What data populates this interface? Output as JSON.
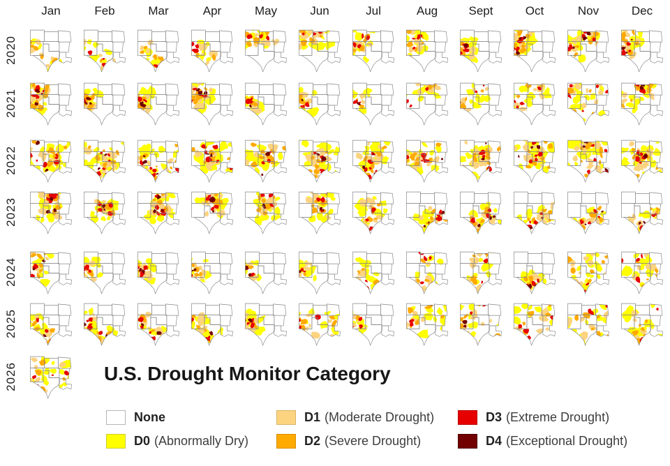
{
  "figure": {
    "title": "U.S. Drought Monitor Category",
    "background": "#ffffff",
    "state_border_color": "#858585",
    "text_color": "#1c1c1c"
  },
  "legend": {
    "columns": [
      [
        {
          "code": "None",
          "desc": "",
          "color": "#ffffff",
          "border": "#b5b5b5"
        },
        {
          "code": "D0",
          "desc": "(Abnormally Dry)",
          "color": "#ffff00",
          "border": "#cccc33"
        }
      ],
      [
        {
          "code": "D1",
          "desc": "(Moderate Drought)",
          "color": "#fcd37f",
          "border": "#d9b468"
        },
        {
          "code": "D2",
          "desc": "(Severe Drought)",
          "color": "#ffaa00",
          "border": "#d98f00"
        }
      ],
      [
        {
          "code": "D3",
          "desc": "(Extreme Drought)",
          "color": "#e60000",
          "border": "#b80000"
        },
        {
          "code": "D4",
          "desc": "(Exceptional Drought)",
          "color": "#730000",
          "border": "#4d0000"
        }
      ]
    ]
  },
  "chart_data": {
    "type": "heatmap",
    "title": "U.S. Drought Monitor Category",
    "categories": [
      "Jan",
      "Feb",
      "Mar",
      "Apr",
      "May",
      "Jun",
      "Jul",
      "Aug",
      "Sept",
      "Oct",
      "Nov",
      "Dec"
    ],
    "years": [
      "2020",
      "2021",
      "2022",
      "2023",
      "2024",
      "2025",
      "2026"
    ],
    "legend_entries": [
      "None",
      "D0 (Abnormally Dry)",
      "D1 (Moderate Drought)",
      "D2 (Severe Drought)",
      "D3 (Extreme Drought)",
      "D4 (Exceptional Drought)"
    ],
    "palette": [
      "#ffff00",
      "#fcd37f",
      "#ffaa00",
      "#e60000",
      "#730000"
    ],
    "region_states": [
      "Colorado",
      "Kansas",
      "Missouri (partial)",
      "New Mexico",
      "Oklahoma",
      "Arkansas",
      "Louisiana",
      "Texas"
    ],
    "series": [
      {
        "name": "2020",
        "cells": [
          {
            "m": "Jan",
            "coverage": 0.4,
            "max_level": 2,
            "focus": "w,s"
          },
          {
            "m": "Feb",
            "coverage": 0.38,
            "max_level": 3,
            "focus": "w,s"
          },
          {
            "m": "Mar",
            "coverage": 0.38,
            "max_level": 3,
            "focus": "w,s"
          },
          {
            "m": "Apr",
            "coverage": 0.45,
            "max_level": 3,
            "focus": "w,s"
          },
          {
            "m": "May",
            "coverage": 0.5,
            "max_level": 3,
            "focus": "nw,n"
          },
          {
            "m": "Jun",
            "coverage": 0.55,
            "max_level": 3,
            "focus": "nw,n"
          },
          {
            "m": "Jul",
            "coverage": 0.55,
            "max_level": 3,
            "focus": "nw,w"
          },
          {
            "m": "Aug",
            "coverage": 0.62,
            "max_level": 3,
            "focus": "w,nw"
          },
          {
            "m": "Sept",
            "coverage": 0.6,
            "max_level": 4,
            "focus": "w"
          },
          {
            "m": "Oct",
            "coverage": 0.68,
            "max_level": 4,
            "focus": "w,nw"
          },
          {
            "m": "Nov",
            "coverage": 0.72,
            "max_level": 4,
            "focus": "w,n"
          },
          {
            "m": "Dec",
            "coverage": 0.72,
            "max_level": 4,
            "focus": "w,nw"
          }
        ]
      },
      {
        "name": "2021",
        "cells": [
          {
            "m": "Jan",
            "coverage": 0.8,
            "max_level": 4,
            "focus": "w,nw"
          },
          {
            "m": "Feb",
            "coverage": 0.78,
            "max_level": 4,
            "focus": "w"
          },
          {
            "m": "Mar",
            "coverage": 0.75,
            "max_level": 4,
            "focus": "w"
          },
          {
            "m": "Apr",
            "coverage": 0.7,
            "max_level": 4,
            "focus": "w,nw"
          },
          {
            "m": "May",
            "coverage": 0.55,
            "max_level": 4,
            "focus": "w"
          },
          {
            "m": "Jun",
            "coverage": 0.42,
            "max_level": 4,
            "focus": "w"
          },
          {
            "m": "Jul",
            "coverage": 0.28,
            "max_level": 4,
            "focus": "w"
          },
          {
            "m": "Aug",
            "coverage": 0.35,
            "max_level": 3,
            "focus": "w,n"
          },
          {
            "m": "Sept",
            "coverage": 0.45,
            "max_level": 3,
            "focus": "w,n"
          },
          {
            "m": "Oct",
            "coverage": 0.5,
            "max_level": 3,
            "focus": "w,n"
          },
          {
            "m": "Nov",
            "coverage": 0.6,
            "max_level": 3,
            "focus": "all"
          },
          {
            "m": "Dec",
            "coverage": 0.68,
            "max_level": 4,
            "focus": "w,n"
          }
        ]
      },
      {
        "name": "2022",
        "cells": [
          {
            "m": "Jan",
            "coverage": 0.85,
            "max_level": 4,
            "focus": "all,w,c"
          },
          {
            "m": "Feb",
            "coverage": 0.85,
            "max_level": 4,
            "focus": "all,c,s"
          },
          {
            "m": "Mar",
            "coverage": 0.85,
            "max_level": 4,
            "focus": "all,w,s"
          },
          {
            "m": "Apr",
            "coverage": 0.82,
            "max_level": 4,
            "focus": "all,c"
          },
          {
            "m": "May",
            "coverage": 0.8,
            "max_level": 4,
            "focus": "all,w,c"
          },
          {
            "m": "Jun",
            "coverage": 0.75,
            "max_level": 4,
            "focus": "all,c,s"
          },
          {
            "m": "Jul",
            "coverage": 0.8,
            "max_level": 4,
            "focus": "all,s,c"
          },
          {
            "m": "Aug",
            "coverage": 0.85,
            "max_level": 4,
            "focus": "all,c,w"
          },
          {
            "m": "Sept",
            "coverage": 0.8,
            "max_level": 4,
            "focus": "all,c"
          },
          {
            "m": "Oct",
            "coverage": 0.85,
            "max_level": 4,
            "focus": "all,n,c"
          },
          {
            "m": "Nov",
            "coverage": 0.88,
            "max_level": 4,
            "focus": "all,n"
          },
          {
            "m": "Dec",
            "coverage": 0.8,
            "max_level": 4,
            "focus": "all,c"
          }
        ]
      },
      {
        "name": "2023",
        "cells": [
          {
            "m": "Jan",
            "coverage": 0.7,
            "max_level": 4,
            "focus": "c,n"
          },
          {
            "m": "Feb",
            "coverage": 0.65,
            "max_level": 4,
            "focus": "c"
          },
          {
            "m": "Mar",
            "coverage": 0.65,
            "max_level": 4,
            "focus": "c,n"
          },
          {
            "m": "Apr",
            "coverage": 0.6,
            "max_level": 4,
            "focus": "c,n"
          },
          {
            "m": "May",
            "coverage": 0.6,
            "max_level": 4,
            "focus": "n,c"
          },
          {
            "m": "Jun",
            "coverage": 0.55,
            "max_level": 4,
            "focus": "n,c"
          },
          {
            "m": "Jul",
            "coverage": 0.55,
            "max_level": 3,
            "focus": "c,s"
          },
          {
            "m": "Aug",
            "coverage": 0.65,
            "max_level": 4,
            "focus": "s,e"
          },
          {
            "m": "Sept",
            "coverage": 0.68,
            "max_level": 4,
            "focus": "s,e"
          },
          {
            "m": "Oct",
            "coverage": 0.62,
            "max_level": 4,
            "focus": "s,e"
          },
          {
            "m": "Nov",
            "coverage": 0.55,
            "max_level": 4,
            "focus": "s,e"
          },
          {
            "m": "Dec",
            "coverage": 0.5,
            "max_level": 4,
            "focus": "s,e"
          }
        ]
      },
      {
        "name": "2024",
        "cells": [
          {
            "m": "Jan",
            "coverage": 0.5,
            "max_level": 4,
            "focus": "w,nw"
          },
          {
            "m": "Feb",
            "coverage": 0.48,
            "max_level": 4,
            "focus": "w"
          },
          {
            "m": "Mar",
            "coverage": 0.45,
            "max_level": 4,
            "focus": "w"
          },
          {
            "m": "Apr",
            "coverage": 0.45,
            "max_level": 4,
            "focus": "w"
          },
          {
            "m": "May",
            "coverage": 0.42,
            "max_level": 4,
            "focus": "w"
          },
          {
            "m": "Jun",
            "coverage": 0.4,
            "max_level": 4,
            "focus": "w"
          },
          {
            "m": "Jul",
            "coverage": 0.4,
            "max_level": 3,
            "focus": "w,s"
          },
          {
            "m": "Aug",
            "coverage": 0.48,
            "max_level": 3,
            "focus": "s,n"
          },
          {
            "m": "Sept",
            "coverage": 0.52,
            "max_level": 3,
            "focus": "s,n"
          },
          {
            "m": "Oct",
            "coverage": 0.55,
            "max_level": 4,
            "focus": "s"
          },
          {
            "m": "Nov",
            "coverage": 0.5,
            "max_level": 3,
            "focus": "all"
          },
          {
            "m": "Dec",
            "coverage": 0.45,
            "max_level": 3,
            "focus": "all"
          }
        ]
      },
      {
        "name": "2025",
        "cells": [
          {
            "m": "Jan",
            "coverage": 0.58,
            "max_level": 4,
            "focus": "w,s"
          },
          {
            "m": "Feb",
            "coverage": 0.58,
            "max_level": 4,
            "focus": "w,s"
          },
          {
            "m": "Mar",
            "coverage": 0.62,
            "max_level": 4,
            "focus": "w,s"
          },
          {
            "m": "Apr",
            "coverage": 0.6,
            "max_level": 4,
            "focus": "w,s"
          },
          {
            "m": "May",
            "coverage": 0.5,
            "max_level": 4,
            "focus": "w"
          },
          {
            "m": "Jun",
            "coverage": 0.42,
            "max_level": 3,
            "focus": "w,all"
          },
          {
            "m": "Jul",
            "coverage": 0.32,
            "max_level": 4,
            "focus": "w"
          },
          {
            "m": "Aug",
            "coverage": 0.45,
            "max_level": 4,
            "focus": "w,all"
          },
          {
            "m": "Sept",
            "coverage": 0.48,
            "max_level": 4,
            "focus": "w,all"
          },
          {
            "m": "Oct",
            "coverage": 0.55,
            "max_level": 3,
            "focus": "all"
          },
          {
            "m": "Nov",
            "coverage": 0.55,
            "max_level": 3,
            "focus": "all"
          },
          {
            "m": "Dec",
            "coverage": 0.58,
            "max_level": 3,
            "focus": "all,s"
          }
        ]
      },
      {
        "name": "2026",
        "cells": [
          {
            "m": "Jan",
            "coverage": 0.58,
            "max_level": 3,
            "focus": "all"
          }
        ]
      }
    ]
  }
}
